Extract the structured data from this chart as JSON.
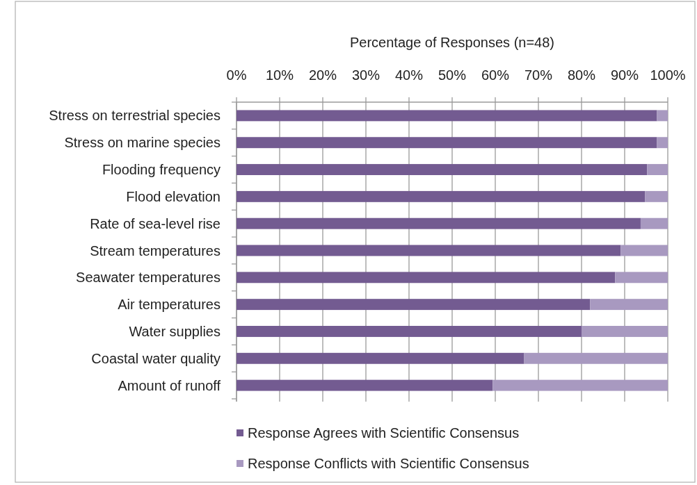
{
  "chart_data": {
    "type": "bar",
    "orientation": "horizontal",
    "stacked": true,
    "xlabel": "Percentage of Responses (n=48)",
    "categories": [
      "Stress on terrestrial species",
      "Stress on marine species",
      "Flooding frequency",
      "Flood elevation",
      "Rate of sea-level rise",
      "Stream temperatures",
      "Seawater temperatures",
      "Air temperatures",
      "Water supplies",
      "Coastal water quality",
      "Amount of runoff"
    ],
    "series": [
      {
        "name": "Response Agrees with Scientific Consensus",
        "color": "#735b91",
        "values": [
          97.5,
          97.5,
          95.2,
          94.7,
          93.7,
          89.1,
          87.8,
          82,
          80,
          66.7,
          59.4
        ]
      },
      {
        "name": "Response Conflicts with Scientific Consensus",
        "color": "#a899c0",
        "values": [
          2.5,
          2.5,
          4.8,
          5.3,
          6.3,
          10.9,
          12.2,
          18,
          20,
          33.3,
          40.6
        ]
      }
    ],
    "xlim": [
      0,
      100
    ],
    "xticks": [
      {
        "value": 0,
        "label": "0%"
      },
      {
        "value": 10,
        "label": "10%"
      },
      {
        "value": 20,
        "label": "20%"
      },
      {
        "value": 30,
        "label": "30%"
      },
      {
        "value": 40,
        "label": "40%"
      },
      {
        "value": 50,
        "label": "50%"
      },
      {
        "value": 60,
        "label": "60%"
      },
      {
        "value": 70,
        "label": "70%"
      },
      {
        "value": 80,
        "label": "80%"
      },
      {
        "value": 90,
        "label": "90%"
      },
      {
        "value": 100,
        "label": "100%"
      }
    ],
    "grid": "x",
    "legend": "bottom"
  }
}
